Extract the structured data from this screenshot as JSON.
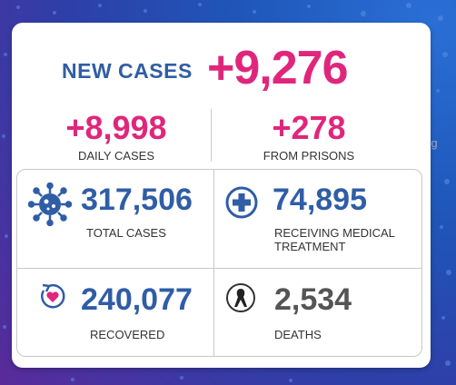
{
  "header": {
    "label": "NEW CASES",
    "value": "+9,276"
  },
  "daily": {
    "value": "+8,998",
    "label": "DAILY CASES"
  },
  "prisons": {
    "value": "+278",
    "label": "FROM PRISONS"
  },
  "stats": [
    {
      "value": "317,506",
      "label": "TOTAL CASES",
      "icon": "virus-icon"
    },
    {
      "value": "74,895",
      "label": "RECEIVING MEDICAL TREATMENT",
      "icon": "medical-cross-icon"
    },
    {
      "value": "240,077",
      "label": "RECOVERED",
      "icon": "heart-recovery-icon"
    },
    {
      "value": "2,534",
      "label": "DEATHS",
      "icon": "ribbon-icon"
    }
  ],
  "colors": {
    "accent_pink": "#e0267c",
    "accent_blue": "#2f5da6",
    "gray": "#555555"
  },
  "watermark": "rg"
}
